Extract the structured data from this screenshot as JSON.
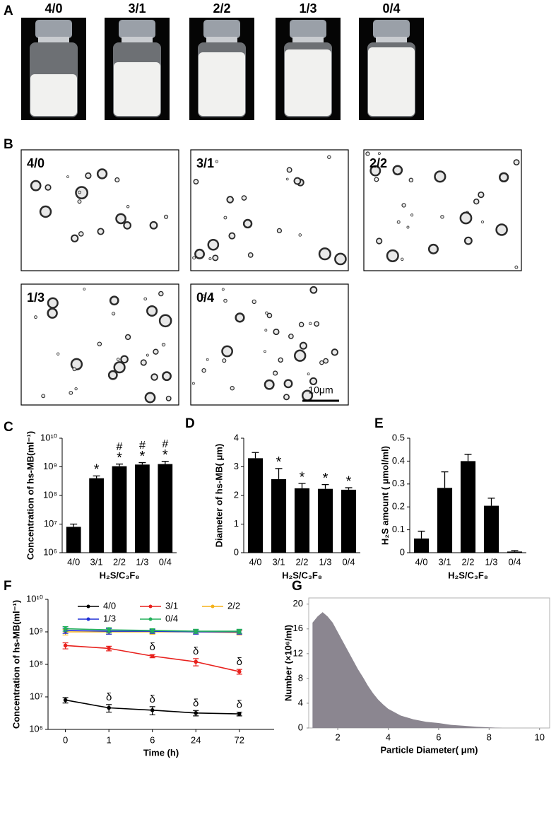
{
  "panel_a": {
    "label": "A",
    "samples": [
      "4/0",
      "3/1",
      "2/2",
      "1/3",
      "0/4"
    ]
  },
  "panel_b": {
    "label": "B",
    "samples": [
      "4/0",
      "3/1",
      "2/2",
      "1/3",
      "0/4"
    ],
    "scale_bar": "10μm"
  },
  "chart_data": [
    {
      "panel": "C",
      "type": "bar",
      "categories": [
        "4/0",
        "3/1",
        "2/2",
        "1/3",
        "0/4"
      ],
      "values": [
        8000000,
        400000000,
        1050000000,
        1200000000,
        1250000000
      ],
      "errors": [
        2000000,
        80000000,
        200000000,
        200000000,
        300000000
      ],
      "star_labels": [
        null,
        "*",
        "*",
        "*",
        "*"
      ],
      "hash_labels": [
        null,
        null,
        "#",
        "#",
        "#"
      ],
      "color": "#000000",
      "log_scale": true,
      "ylim": [
        1000000,
        10000000000
      ],
      "yticks": [
        {
          "value": 1000000,
          "label": "10⁶"
        },
        {
          "value": 10000000,
          "label": "10⁷"
        },
        {
          "value": 100000000,
          "label": "10⁸"
        },
        {
          "value": 1000000000,
          "label": "10⁹"
        },
        {
          "value": 10000000000,
          "label": "10¹⁰"
        }
      ],
      "y_label": "Concentration of hs-MB(ml⁻¹)",
      "x_label": "H₂S/C₃F₈"
    },
    {
      "panel": "D",
      "type": "bar",
      "categories": [
        "4/0",
        "3/1",
        "2/2",
        "1/3",
        "0/4"
      ],
      "values": [
        3.3,
        2.57,
        2.25,
        2.23,
        2.2
      ],
      "errors": [
        0.2,
        0.37,
        0.17,
        0.15,
        0.07
      ],
      "star_labels": [
        null,
        "*",
        "*",
        "*",
        "*"
      ],
      "color": "#000000",
      "log_scale": false,
      "ylim": [
        0,
        4
      ],
      "yticks": [
        0,
        1,
        2,
        3,
        4
      ],
      "y_label": "Diameter of hs-MB( μm)",
      "x_label": "H₂S/C₃F₈"
    },
    {
      "panel": "E",
      "type": "bar",
      "categories": [
        "4/0",
        "3/1",
        "2/2",
        "1/3",
        "0/4"
      ],
      "values": [
        0.062,
        0.283,
        0.4,
        0.205,
        0.005
      ],
      "errors": [
        0.032,
        0.07,
        0.03,
        0.033,
        0.004
      ],
      "color": "#000000",
      "log_scale": false,
      "ylim": [
        0,
        0.5
      ],
      "yticks": [
        0,
        0.1,
        0.2,
        0.3,
        0.4,
        0.5
      ],
      "y_label": "H₂S amount ( μmol/ml)",
      "x_label": "H₂S/C₃F₈"
    },
    {
      "panel": "F",
      "type": "line",
      "categories": [
        "0",
        "1",
        "6",
        "24",
        "72"
      ],
      "log_scale": true,
      "ylim": [
        1000000,
        10000000000
      ],
      "yticks": [
        {
          "value": 1000000,
          "label": "10⁶"
        },
        {
          "value": 10000000,
          "label": "10⁷"
        },
        {
          "value": 100000000,
          "label": "10⁸"
        },
        {
          "value": 1000000000,
          "label": "10⁹"
        },
        {
          "value": 10000000000,
          "label": "10¹⁰"
        }
      ],
      "legend": "top",
      "series": [
        {
          "name": "4/0",
          "color": "#000000",
          "values": [
            8000000,
            4600000,
            3900000,
            3200000,
            3000000
          ],
          "errors": [
            1500000,
            1200000,
            1100000,
            600000,
            400000
          ],
          "point_labels": [
            null,
            "δ",
            "δ",
            "δ",
            "δ"
          ]
        },
        {
          "name": "3/1",
          "color": "#e8211d",
          "values": [
            380000000,
            310000000,
            180000000,
            120000000,
            60000000
          ],
          "errors": [
            80000000,
            50000000,
            20000000,
            30000000,
            10000000
          ],
          "point_labels": [
            null,
            null,
            "δ",
            "δ",
            "δ"
          ]
        },
        {
          "name": "2/2",
          "color": "#f5b21a",
          "values": [
            1000000000,
            1000000000,
            1000000000,
            1000000000,
            950000000
          ],
          "errors": [
            200000000,
            150000000,
            150000000,
            150000000,
            150000000
          ]
        },
        {
          "name": "1/3",
          "color": "#1f2fd6",
          "values": [
            1100000000,
            1050000000,
            1050000000,
            1000000000,
            1000000000
          ],
          "errors": [
            200000000,
            200000000,
            150000000,
            150000000,
            150000000
          ]
        },
        {
          "name": "0/4",
          "color": "#22b05a",
          "values": [
            1250000000,
            1150000000,
            1100000000,
            1050000000,
            1050000000
          ],
          "errors": [
            200000000,
            200000000,
            150000000,
            150000000,
            150000000
          ]
        }
      ],
      "y_label": "Concentration of hs-MB(ml⁻¹)",
      "x_label": "Time (h)"
    },
    {
      "panel": "G",
      "type": "area",
      "color": "#8b8690",
      "x": [
        1.0,
        1.2,
        1.4,
        1.6,
        1.8,
        2.0,
        2.2,
        2.4,
        2.6,
        2.8,
        3.0,
        3.2,
        3.4,
        3.6,
        3.8,
        4.0,
        4.5,
        5.0,
        5.5,
        6.0,
        6.5,
        7.0,
        7.5,
        8.0,
        8.5
      ],
      "values": [
        17,
        18,
        18.7,
        18,
        17,
        15.5,
        14,
        12.5,
        11,
        9.5,
        8.2,
        6.8,
        5.6,
        4.6,
        3.8,
        3.1,
        2.0,
        1.4,
        1.0,
        0.8,
        0.5,
        0.35,
        0.2,
        0.1,
        0.02
      ],
      "xlim": [
        0.85,
        10.4
      ],
      "ylim": [
        0,
        21
      ],
      "xticks": [
        2,
        4,
        6,
        8,
        10
      ],
      "yticks": [
        0,
        4,
        8,
        12,
        16,
        20
      ],
      "y_label": "Number (×10⁶/ml)",
      "x_label": "Particle Diameter( μm)"
    }
  ]
}
